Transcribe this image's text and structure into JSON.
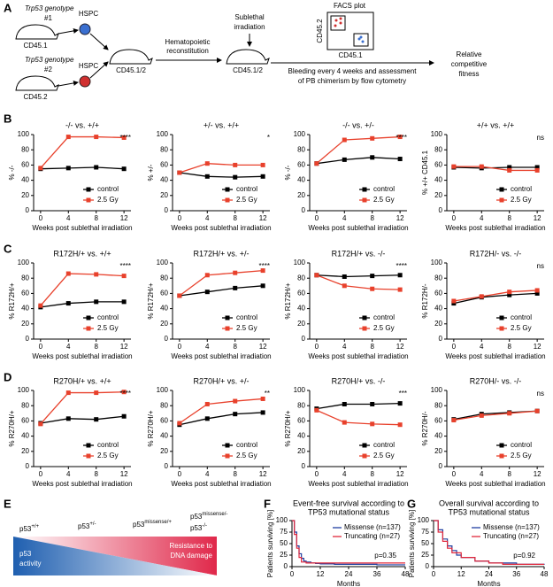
{
  "panel_labels": [
    "A",
    "B",
    "C",
    "D",
    "E",
    "F",
    "G"
  ],
  "panel_a": {
    "genotype1": [
      "Trp53 genotype",
      "#1"
    ],
    "donor1": "CD45.1",
    "hspc1": "HSPC",
    "genotype2": [
      "Trp53 genotype",
      "#2"
    ],
    "donor2": "CD45.2",
    "hspc2": "HSPC",
    "recipient": "CD45.1/2",
    "step1": [
      "Hematopoietic",
      "reconstitution"
    ],
    "step2": [
      "Sublethal",
      "irradiation"
    ],
    "recipient2": "CD45.1/2",
    "facs_title": "FACS plot",
    "facs_y": "CD45.2",
    "facs_x": "CD45.1",
    "step3": [
      "Bleeding every 4 weeks and assessment",
      "of PB chimerism by flow cytometry"
    ],
    "result": [
      "Relative",
      "competitive",
      "fitness"
    ]
  },
  "panel_e": {
    "states": [
      {
        "base": "p53",
        "sup": "+/+"
      },
      {
        "base": "p53",
        "sup": "+/-"
      },
      {
        "base": "p53",
        "sup": "missense/+"
      },
      {
        "base": "p53",
        "sup": "missense/-"
      },
      {
        "base": "p53",
        "sup": "-/-"
      }
    ],
    "left_label": [
      "p53",
      "activity"
    ],
    "right_label": [
      "Resistance to",
      "DNA damage"
    ]
  },
  "chart_data": [
    {
      "type": "line",
      "title": "-/- vs. +/+",
      "ylabel": "% -/-",
      "xlabel": "Weeks post sublethal irradiation",
      "x": [
        0,
        4,
        8,
        12
      ],
      "xlim": [
        -1,
        13
      ],
      "xticks": [
        0,
        4,
        8,
        12
      ],
      "ylim": [
        0,
        100
      ],
      "yticks": [
        0,
        20,
        40,
        60,
        80,
        100
      ],
      "legend": "lower right",
      "annotation": "****",
      "series": [
        {
          "name": "control",
          "color": "#000000",
          "values": [
            55,
            56,
            57,
            55
          ]
        },
        {
          "name": "2.5 Gy",
          "color": "#e8412c",
          "values": [
            56,
            97,
            97,
            96
          ]
        }
      ]
    },
    {
      "type": "line",
      "title": "+/- vs. +/+",
      "ylabel": "% +/-",
      "xlabel": "Weeks post sublethal irradiation",
      "x": [
        0,
        4,
        8,
        12
      ],
      "xlim": [
        -1,
        13
      ],
      "xticks": [
        0,
        4,
        8,
        12
      ],
      "ylim": [
        0,
        100
      ],
      "yticks": [
        0,
        20,
        40,
        60,
        80,
        100
      ],
      "legend": "lower right",
      "annotation": "*",
      "series": [
        {
          "name": "control",
          "color": "#000000",
          "values": [
            50,
            45,
            44,
            45
          ]
        },
        {
          "name": "2.5 Gy",
          "color": "#e8412c",
          "values": [
            50,
            62,
            60,
            60
          ]
        }
      ]
    },
    {
      "type": "line",
      "title": "-/- vs. +/-",
      "ylabel": "% -/-",
      "xlabel": "Weeks post sublethal irradiation",
      "x": [
        0,
        4,
        8,
        12
      ],
      "xlim": [
        -1,
        13
      ],
      "xticks": [
        0,
        4,
        8,
        12
      ],
      "ylim": [
        0,
        100
      ],
      "yticks": [
        0,
        20,
        40,
        60,
        80,
        100
      ],
      "legend": "lower right",
      "annotation": "****",
      "series": [
        {
          "name": "control",
          "color": "#000000",
          "values": [
            62,
            67,
            70,
            68
          ]
        },
        {
          "name": "2.5 Gy",
          "color": "#e8412c",
          "values": [
            62,
            93,
            95,
            97
          ]
        }
      ]
    },
    {
      "type": "line",
      "title": "+/+ vs. +/+",
      "ylabel": "% +/+ CD45.1",
      "xlabel": "Weeks post sublethal irradiation",
      "x": [
        0,
        4,
        8,
        12
      ],
      "xlim": [
        -1,
        13
      ],
      "xticks": [
        0,
        4,
        8,
        12
      ],
      "ylim": [
        0,
        100
      ],
      "yticks": [
        0,
        20,
        40,
        60,
        80,
        100
      ],
      "legend": "lower right",
      "annotation": "ns",
      "series": [
        {
          "name": "control",
          "color": "#000000",
          "values": [
            57,
            56,
            57,
            57
          ]
        },
        {
          "name": "2.5 Gy",
          "color": "#e8412c",
          "values": [
            58,
            58,
            53,
            53
          ]
        }
      ]
    },
    {
      "type": "line",
      "title": "R172H/+ vs. +/+",
      "ylabel": "% R172H/+",
      "xlabel": "Weeks post sublethal irradiation",
      "x": [
        0,
        4,
        8,
        12
      ],
      "xlim": [
        -1,
        13
      ],
      "xticks": [
        0,
        4,
        8,
        12
      ],
      "ylim": [
        0,
        100
      ],
      "yticks": [
        0,
        20,
        40,
        60,
        80,
        100
      ],
      "legend": "lower right",
      "annotation": "****",
      "series": [
        {
          "name": "control",
          "color": "#000000",
          "values": [
            42,
            47,
            49,
            49
          ]
        },
        {
          "name": "2.5 Gy",
          "color": "#e8412c",
          "values": [
            44,
            86,
            85,
            83
          ]
        }
      ]
    },
    {
      "type": "line",
      "title": "R172H/+ vs. +/-",
      "ylabel": "% R172H/+",
      "xlabel": "Weeks post sublethal irradiation",
      "x": [
        0,
        4,
        8,
        12
      ],
      "xlim": [
        -1,
        13
      ],
      "xticks": [
        0,
        4,
        8,
        12
      ],
      "ylim": [
        0,
        100
      ],
      "yticks": [
        0,
        20,
        40,
        60,
        80,
        100
      ],
      "legend": "lower right",
      "annotation": "****",
      "series": [
        {
          "name": "control",
          "color": "#000000",
          "values": [
            57,
            62,
            67,
            70
          ]
        },
        {
          "name": "2.5 Gy",
          "color": "#e8412c",
          "values": [
            57,
            84,
            87,
            90
          ]
        }
      ]
    },
    {
      "type": "line",
      "title": "R172H/+ vs. -/-",
      "ylabel": "% R172H/+",
      "xlabel": "Weeks post sublethal irradiation",
      "x": [
        0,
        4,
        8,
        12
      ],
      "xlim": [
        -1,
        13
      ],
      "xticks": [
        0,
        4,
        8,
        12
      ],
      "ylim": [
        0,
        100
      ],
      "yticks": [
        0,
        20,
        40,
        60,
        80,
        100
      ],
      "legend": "lower right",
      "annotation": "****",
      "series": [
        {
          "name": "control",
          "color": "#000000",
          "values": [
            84,
            82,
            83,
            84
          ]
        },
        {
          "name": "2.5 Gy",
          "color": "#e8412c",
          "values": [
            84,
            70,
            66,
            65
          ]
        }
      ]
    },
    {
      "type": "line",
      "title": "R172H/- vs. -/-",
      "ylabel": "% R172H/-",
      "xlabel": "Weeks post sublethal irradiation",
      "x": [
        0,
        4,
        8,
        12
      ],
      "xlim": [
        -1,
        13
      ],
      "xticks": [
        0,
        4,
        8,
        12
      ],
      "ylim": [
        0,
        100
      ],
      "yticks": [
        0,
        20,
        40,
        60,
        80,
        100
      ],
      "legend": "lower right",
      "annotation": "ns",
      "series": [
        {
          "name": "control",
          "color": "#000000",
          "values": [
            47,
            55,
            58,
            60
          ]
        },
        {
          "name": "2.5 Gy",
          "color": "#e8412c",
          "values": [
            50,
            56,
            62,
            64
          ]
        }
      ]
    },
    {
      "type": "line",
      "title": "R270H/+ vs. +/+",
      "ylabel": "% R270H/+",
      "xlabel": "Weeks post sublethal irradiation",
      "x": [
        0,
        4,
        8,
        12
      ],
      "xlim": [
        -1,
        13
      ],
      "xticks": [
        0,
        4,
        8,
        12
      ],
      "ylim": [
        0,
        100
      ],
      "yticks": [
        0,
        20,
        40,
        60,
        80,
        100
      ],
      "legend": "lower right",
      "annotation": "****",
      "series": [
        {
          "name": "control",
          "color": "#000000",
          "values": [
            57,
            63,
            62,
            66
          ]
        },
        {
          "name": "2.5 Gy",
          "color": "#e8412c",
          "values": [
            56,
            97,
            97,
            98
          ]
        }
      ]
    },
    {
      "type": "line",
      "title": "R270H/+ vs. +/-",
      "ylabel": "% R270H/+",
      "xlabel": "Weeks post sublethal irradiation",
      "x": [
        0,
        4,
        8,
        12
      ],
      "xlim": [
        -1,
        13
      ],
      "xticks": [
        0,
        4,
        8,
        12
      ],
      "ylim": [
        0,
        100
      ],
      "yticks": [
        0,
        20,
        40,
        60,
        80,
        100
      ],
      "legend": "lower right",
      "annotation": "**",
      "series": [
        {
          "name": "control",
          "color": "#000000",
          "values": [
            55,
            63,
            69,
            71
          ]
        },
        {
          "name": "2.5 Gy",
          "color": "#e8412c",
          "values": [
            57,
            82,
            86,
            89
          ]
        }
      ]
    },
    {
      "type": "line",
      "title": "R270H/+ vs. -/-",
      "ylabel": "% R270H/+",
      "xlabel": "Weeks post sublethal irradiation",
      "x": [
        0,
        4,
        8,
        12
      ],
      "xlim": [
        -1,
        13
      ],
      "xticks": [
        0,
        4,
        8,
        12
      ],
      "ylim": [
        0,
        100
      ],
      "yticks": [
        0,
        20,
        40,
        60,
        80,
        100
      ],
      "legend": "lower right",
      "annotation": "***",
      "series": [
        {
          "name": "control",
          "color": "#000000",
          "values": [
            76,
            82,
            82,
            83
          ]
        },
        {
          "name": "2.5 Gy",
          "color": "#e8412c",
          "values": [
            74,
            58,
            56,
            55
          ]
        }
      ]
    },
    {
      "type": "line",
      "title": "R270H/- vs. -/-",
      "ylabel": "% R270H/-",
      "xlabel": "Weeks post sublethal irradiation",
      "x": [
        0,
        4,
        8,
        12
      ],
      "xlim": [
        -1,
        13
      ],
      "xticks": [
        0,
        4,
        8,
        12
      ],
      "ylim": [
        0,
        100
      ],
      "yticks": [
        0,
        20,
        40,
        60,
        80,
        100
      ],
      "legend": "lower right",
      "annotation": "ns",
      "series": [
        {
          "name": "control",
          "color": "#000000",
          "values": [
            62,
            69,
            71,
            73
          ]
        },
        {
          "name": "2.5 Gy",
          "color": "#e8412c",
          "values": [
            61,
            67,
            70,
            73
          ]
        }
      ]
    },
    {
      "type": "survival",
      "title": [
        "Event-free survival according to",
        "TP53 mutational status"
      ],
      "ylabel": "Patients surviving [%]",
      "xlabel": "Months",
      "xlim": [
        0,
        48
      ],
      "xticks": [
        0,
        12,
        24,
        36,
        48
      ],
      "ylim": [
        0,
        100
      ],
      "yticks": [
        0,
        25,
        50,
        75,
        100
      ],
      "legend": "upper right",
      "annotation": "p=0.35",
      "series": [
        {
          "name": "Missense (n=137)",
          "color": "#1f3fa0",
          "x": [
            0,
            1,
            2,
            3,
            4,
            5,
            6,
            8,
            10,
            12,
            18,
            24,
            36,
            48
          ],
          "values": [
            100,
            75,
            45,
            28,
            18,
            12,
            10,
            8,
            7,
            6,
            5,
            5,
            4,
            4
          ]
        },
        {
          "name": "Truncating (n=27)",
          "color": "#e0283c",
          "x": [
            0,
            1,
            2,
            3,
            4,
            6,
            12,
            24,
            48
          ],
          "values": [
            100,
            70,
            40,
            20,
            10,
            8,
            8,
            8,
            8
          ]
        }
      ]
    },
    {
      "type": "survival",
      "title": [
        "Overall survival according to",
        "TP53 mutational status"
      ],
      "ylabel": "Patients surviving [%]",
      "xlabel": "Months",
      "xlim": [
        0,
        48
      ],
      "xticks": [
        0,
        12,
        24,
        36,
        48
      ],
      "ylim": [
        0,
        100
      ],
      "yticks": [
        0,
        25,
        50,
        75,
        100
      ],
      "legend": "upper right",
      "annotation": "p=0.92",
      "series": [
        {
          "name": "Missense (n=137)",
          "color": "#1f3fa0",
          "x": [
            0,
            2,
            4,
            6,
            8,
            10,
            12,
            18,
            24,
            36,
            48
          ],
          "values": [
            100,
            80,
            60,
            45,
            35,
            25,
            20,
            12,
            8,
            5,
            4
          ]
        },
        {
          "name": "Truncating (n=27)",
          "color": "#e0283c",
          "x": [
            0,
            2,
            4,
            6,
            8,
            12,
            18,
            24,
            30,
            48
          ],
          "values": [
            100,
            75,
            55,
            40,
            30,
            20,
            12,
            8,
            5,
            5
          ]
        }
      ]
    }
  ]
}
